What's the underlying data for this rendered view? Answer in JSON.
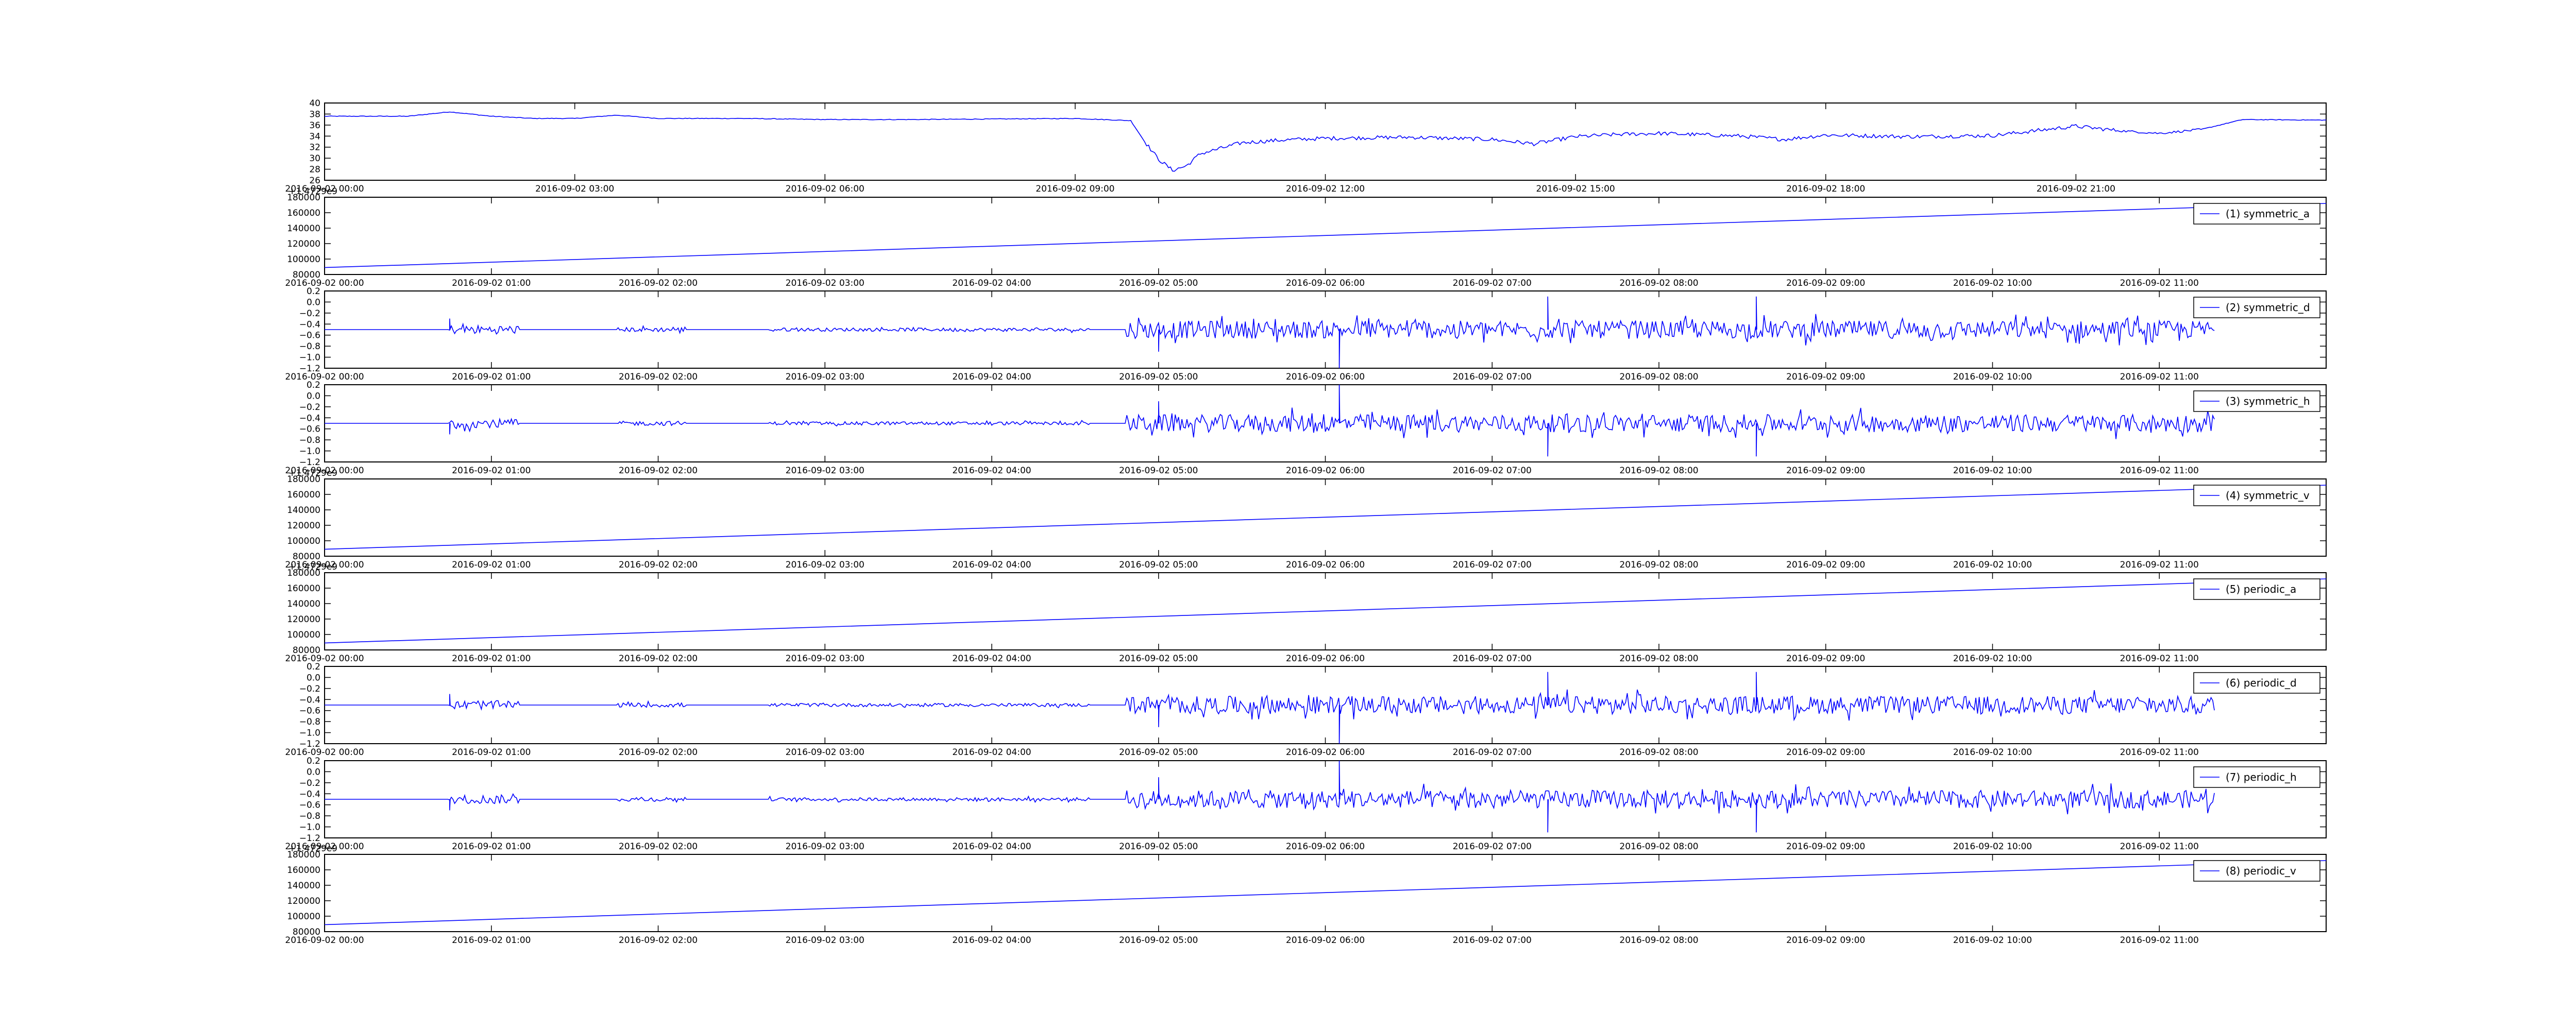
{
  "colors": {
    "line": "#0000ff",
    "axes": "#000000",
    "background": "#ffffff"
  },
  "chart_data": [
    {
      "type": "line",
      "title": "",
      "xlabel": "",
      "ylabel": "",
      "xlim": [
        "2016-09-02 00:00",
        "2016-09-02 24:00"
      ],
      "ylim": [
        26,
        40
      ],
      "yticks": [
        26,
        28,
        30,
        32,
        34,
        36,
        38,
        40
      ],
      "xticks": [
        "2016-09-02 00:00",
        "2016-09-02 03:00",
        "2016-09-02 06:00",
        "2016-09-02 09:00",
        "2016-09-02 12:00",
        "2016-09-02 15:00",
        "2016-09-02 18:00",
        "2016-09-02 21:00"
      ],
      "legend": null,
      "offset_text": "",
      "series": [
        {
          "x": [
            "2016-09-02 00:00",
            "2016-09-02 01:00",
            "2016-09-02 01:30",
            "2016-09-02 02:00",
            "2016-09-02 02:30",
            "2016-09-02 03:00",
            "2016-09-02 03:30",
            "2016-09-02 04:00",
            "2016-09-02 05:00",
            "2016-09-02 06:00",
            "2016-09-02 07:00",
            "2016-09-02 08:00",
            "2016-09-02 09:00",
            "2016-09-02 09:40",
            "2016-09-02 09:50",
            "2016-09-02 10:00",
            "2016-09-02 10:10",
            "2016-09-02 10:20",
            "2016-09-02 10:30",
            "2016-09-02 11:00",
            "2016-09-02 11:30",
            "2016-09-02 12:00",
            "2016-09-02 13:00",
            "2016-09-02 14:00",
            "2016-09-02 14:30",
            "2016-09-02 15:00",
            "2016-09-02 15:30",
            "2016-09-02 16:00",
            "2016-09-02 17:00",
            "2016-09-02 17:30",
            "2016-09-02 18:00",
            "2016-09-02 19:00",
            "2016-09-02 20:00",
            "2016-09-02 21:00",
            "2016-09-02 21:30",
            "2016-09-02 22:00",
            "2016-09-02 22:30",
            "2016-09-02 23:00",
            "2016-09-02 24:00"
          ],
          "y": [
            37.6,
            37.6,
            38.4,
            37.6,
            37.2,
            37.2,
            37.8,
            37.2,
            37.2,
            37.0,
            37.0,
            37.1,
            37.2,
            36.8,
            33.0,
            29.8,
            27.8,
            28.6,
            30.8,
            32.8,
            33.3,
            33.6,
            33.8,
            33.4,
            32.6,
            33.9,
            34.3,
            34.5,
            34.0,
            33.4,
            34.2,
            33.9,
            34.1,
            35.8,
            35.0,
            34.5,
            35.2,
            37.0,
            36.9
          ]
        }
      ]
    },
    {
      "type": "line",
      "title": "",
      "xlabel": "",
      "ylabel": "",
      "xlim": [
        "2016-09-02 00:00",
        "2016-09-02 12:00"
      ],
      "ylim": [
        80000,
        180000
      ],
      "yticks": [
        80000,
        100000,
        120000,
        140000,
        160000,
        180000
      ],
      "xticks": [
        "2016-09-02 00:00",
        "2016-09-02 01:00",
        "2016-09-02 02:00",
        "2016-09-02 03:00",
        "2016-09-02 04:00",
        "2016-09-02 05:00",
        "2016-09-02 06:00",
        "2016-09-02 07:00",
        "2016-09-02 08:00",
        "2016-09-02 09:00",
        "2016-09-02 10:00",
        "2016-09-02 11:00"
      ],
      "legend": "upper right",
      "offset_text": "+1.4729e9",
      "series": [
        {
          "name": "(1) symmetric_a",
          "x": [
            "2016-09-02 00:00",
            "2016-09-02 12:00"
          ],
          "y": [
            89000,
            172000
          ]
        }
      ]
    },
    {
      "type": "line",
      "title": "",
      "xlabel": "",
      "ylabel": "",
      "xlim": [
        "2016-09-02 00:00",
        "2016-09-02 12:00"
      ],
      "ylim": [
        -1.2,
        0.2
      ],
      "yticks": [
        -1.2,
        -1.0,
        -0.8,
        -0.6,
        -0.4,
        -0.2,
        0.0,
        0.2
      ],
      "xticks": [
        "2016-09-02 00:00",
        "2016-09-02 01:00",
        "2016-09-02 02:00",
        "2016-09-02 03:00",
        "2016-09-02 04:00",
        "2016-09-02 05:00",
        "2016-09-02 06:00",
        "2016-09-02 07:00",
        "2016-09-02 08:00",
        "2016-09-02 09:00",
        "2016-09-02 10:00",
        "2016-09-02 11:00"
      ],
      "legend": "upper right",
      "offset_text": "",
      "series": [
        {
          "name": "(2) symmetric_d",
          "baseline": -0.5,
          "x_end": "2016-09-02 11:20",
          "bursts": [
            [
              "2016-09-02 00:45",
              "2016-09-02 01:10",
              0.08
            ],
            [
              "2016-09-02 01:45",
              "2016-09-02 02:10",
              0.04
            ],
            [
              "2016-09-02 02:40",
              "2016-09-02 04:35",
              0.03
            ],
            [
              "2016-09-02 04:48",
              "2016-09-02 11:20",
              0.16
            ]
          ],
          "spikes": [
            [
              "2016-09-02 00:45",
              0.2
            ],
            [
              "2016-09-02 05:00",
              -0.4
            ],
            [
              "2016-09-02 06:05",
              -0.75
            ],
            [
              "2016-09-02 07:20",
              0.6
            ],
            [
              "2016-09-02 08:35",
              0.6
            ]
          ]
        }
      ]
    },
    {
      "type": "line",
      "title": "",
      "xlabel": "",
      "ylabel": "",
      "xlim": [
        "2016-09-02 00:00",
        "2016-09-02 12:00"
      ],
      "ylim": [
        -1.2,
        0.2
      ],
      "yticks": [
        -1.2,
        -1.0,
        -0.8,
        -0.6,
        -0.4,
        -0.2,
        0.0,
        0.2
      ],
      "xticks": [
        "2016-09-02 00:00",
        "2016-09-02 01:00",
        "2016-09-02 02:00",
        "2016-09-02 03:00",
        "2016-09-02 04:00",
        "2016-09-02 05:00",
        "2016-09-02 06:00",
        "2016-09-02 07:00",
        "2016-09-02 08:00",
        "2016-09-02 09:00",
        "2016-09-02 10:00",
        "2016-09-02 11:00"
      ],
      "legend": "upper right",
      "offset_text": "",
      "series": [
        {
          "name": "(3) symmetric_h",
          "baseline": -0.5,
          "x_end": "2016-09-02 11:20",
          "bursts": [
            [
              "2016-09-02 00:45",
              "2016-09-02 01:10",
              0.08
            ],
            [
              "2016-09-02 01:45",
              "2016-09-02 02:10",
              0.04
            ],
            [
              "2016-09-02 02:40",
              "2016-09-02 04:35",
              0.03
            ],
            [
              "2016-09-02 04:48",
              "2016-09-02 11:20",
              0.16
            ]
          ],
          "spikes": [
            [
              "2016-09-02 00:45",
              -0.2
            ],
            [
              "2016-09-02 05:00",
              0.4
            ],
            [
              "2016-09-02 06:05",
              0.75
            ],
            [
              "2016-09-02 07:20",
              -0.6
            ],
            [
              "2016-09-02 08:35",
              -0.6
            ]
          ]
        }
      ]
    },
    {
      "type": "line",
      "title": "",
      "xlabel": "",
      "ylabel": "",
      "xlim": [
        "2016-09-02 00:00",
        "2016-09-02 12:00"
      ],
      "ylim": [
        80000,
        180000
      ],
      "yticks": [
        80000,
        100000,
        120000,
        140000,
        160000,
        180000
      ],
      "xticks": [
        "2016-09-02 00:00",
        "2016-09-02 01:00",
        "2016-09-02 02:00",
        "2016-09-02 03:00",
        "2016-09-02 04:00",
        "2016-09-02 05:00",
        "2016-09-02 06:00",
        "2016-09-02 07:00",
        "2016-09-02 08:00",
        "2016-09-02 09:00",
        "2016-09-02 10:00",
        "2016-09-02 11:00"
      ],
      "legend": "upper right",
      "offset_text": "+1.4729e9",
      "series": [
        {
          "name": "(4) symmetric_v",
          "x": [
            "2016-09-02 00:00",
            "2016-09-02 12:00"
          ],
          "y": [
            89000,
            172000
          ]
        }
      ]
    },
    {
      "type": "line",
      "title": "",
      "xlabel": "",
      "ylabel": "",
      "xlim": [
        "2016-09-02 00:00",
        "2016-09-02 12:00"
      ],
      "ylim": [
        80000,
        180000
      ],
      "yticks": [
        80000,
        100000,
        120000,
        140000,
        160000,
        180000
      ],
      "xticks": [
        "2016-09-02 00:00",
        "2016-09-02 01:00",
        "2016-09-02 02:00",
        "2016-09-02 03:00",
        "2016-09-02 04:00",
        "2016-09-02 05:00",
        "2016-09-02 06:00",
        "2016-09-02 07:00",
        "2016-09-02 08:00",
        "2016-09-02 09:00",
        "2016-09-02 10:00",
        "2016-09-02 11:00"
      ],
      "legend": "upper right",
      "offset_text": "+1.4729e9",
      "series": [
        {
          "name": "(5) periodic_a",
          "x": [
            "2016-09-02 00:00",
            "2016-09-02 12:00"
          ],
          "y": [
            89000,
            172000
          ]
        }
      ]
    },
    {
      "type": "line",
      "title": "",
      "xlabel": "",
      "ylabel": "",
      "xlim": [
        "2016-09-02 00:00",
        "2016-09-02 12:00"
      ],
      "ylim": [
        -1.2,
        0.2
      ],
      "yticks": [
        -1.2,
        -1.0,
        -0.8,
        -0.6,
        -0.4,
        -0.2,
        0.0,
        0.2
      ],
      "xticks": [
        "2016-09-02 00:00",
        "2016-09-02 01:00",
        "2016-09-02 02:00",
        "2016-09-02 03:00",
        "2016-09-02 04:00",
        "2016-09-02 05:00",
        "2016-09-02 06:00",
        "2016-09-02 07:00",
        "2016-09-02 08:00",
        "2016-09-02 09:00",
        "2016-09-02 10:00",
        "2016-09-02 11:00"
      ],
      "legend": "upper right",
      "offset_text": "",
      "series": [
        {
          "name": "(6) periodic_d",
          "baseline": -0.5,
          "x_end": "2016-09-02 11:20",
          "bursts": [
            [
              "2016-09-02 00:45",
              "2016-09-02 01:10",
              0.08
            ],
            [
              "2016-09-02 01:45",
              "2016-09-02 02:10",
              0.04
            ],
            [
              "2016-09-02 02:40",
              "2016-09-02 04:35",
              0.03
            ],
            [
              "2016-09-02 04:48",
              "2016-09-02 11:20",
              0.16
            ]
          ],
          "spikes": [
            [
              "2016-09-02 00:45",
              0.2
            ],
            [
              "2016-09-02 05:00",
              -0.4
            ],
            [
              "2016-09-02 06:05",
              -0.75
            ],
            [
              "2016-09-02 07:20",
              0.6
            ],
            [
              "2016-09-02 08:35",
              0.6
            ]
          ]
        }
      ]
    },
    {
      "type": "line",
      "title": "",
      "xlabel": "",
      "ylabel": "",
      "xlim": [
        "2016-09-02 00:00",
        "2016-09-02 12:00"
      ],
      "ylim": [
        -1.2,
        0.2
      ],
      "yticks": [
        -1.2,
        -1.0,
        -0.8,
        -0.6,
        -0.4,
        -0.2,
        0.0,
        0.2
      ],
      "xticks": [
        "2016-09-02 00:00",
        "2016-09-02 01:00",
        "2016-09-02 02:00",
        "2016-09-02 03:00",
        "2016-09-02 04:00",
        "2016-09-02 05:00",
        "2016-09-02 06:00",
        "2016-09-02 07:00",
        "2016-09-02 08:00",
        "2016-09-02 09:00",
        "2016-09-02 10:00",
        "2016-09-02 11:00"
      ],
      "legend": "upper right",
      "offset_text": "",
      "series": [
        {
          "name": "(7) periodic_h",
          "baseline": -0.5,
          "x_end": "2016-09-02 11:20",
          "bursts": [
            [
              "2016-09-02 00:45",
              "2016-09-02 01:10",
              0.08
            ],
            [
              "2016-09-02 01:45",
              "2016-09-02 02:10",
              0.04
            ],
            [
              "2016-09-02 02:40",
              "2016-09-02 04:35",
              0.03
            ],
            [
              "2016-09-02 04:48",
              "2016-09-02 11:20",
              0.16
            ]
          ],
          "spikes": [
            [
              "2016-09-02 00:45",
              -0.2
            ],
            [
              "2016-09-02 05:00",
              0.4
            ],
            [
              "2016-09-02 06:05",
              0.75
            ],
            [
              "2016-09-02 07:20",
              -0.6
            ],
            [
              "2016-09-02 08:35",
              -0.6
            ]
          ]
        }
      ]
    },
    {
      "type": "line",
      "title": "",
      "xlabel": "",
      "ylabel": "",
      "xlim": [
        "2016-09-02 00:00",
        "2016-09-02 12:00"
      ],
      "ylim": [
        80000,
        180000
      ],
      "yticks": [
        80000,
        100000,
        120000,
        140000,
        160000,
        180000
      ],
      "xticks": [
        "2016-09-02 00:00",
        "2016-09-02 01:00",
        "2016-09-02 02:00",
        "2016-09-02 03:00",
        "2016-09-02 04:00",
        "2016-09-02 05:00",
        "2016-09-02 06:00",
        "2016-09-02 07:00",
        "2016-09-02 08:00",
        "2016-09-02 09:00",
        "2016-09-02 10:00",
        "2016-09-02 11:00"
      ],
      "legend": "upper right",
      "offset_text": "+1.4729e9",
      "series": [
        {
          "name": "(8) periodic_v",
          "x": [
            "2016-09-02 00:00",
            "2016-09-02 12:00"
          ],
          "y": [
            89000,
            172000
          ]
        }
      ]
    }
  ]
}
